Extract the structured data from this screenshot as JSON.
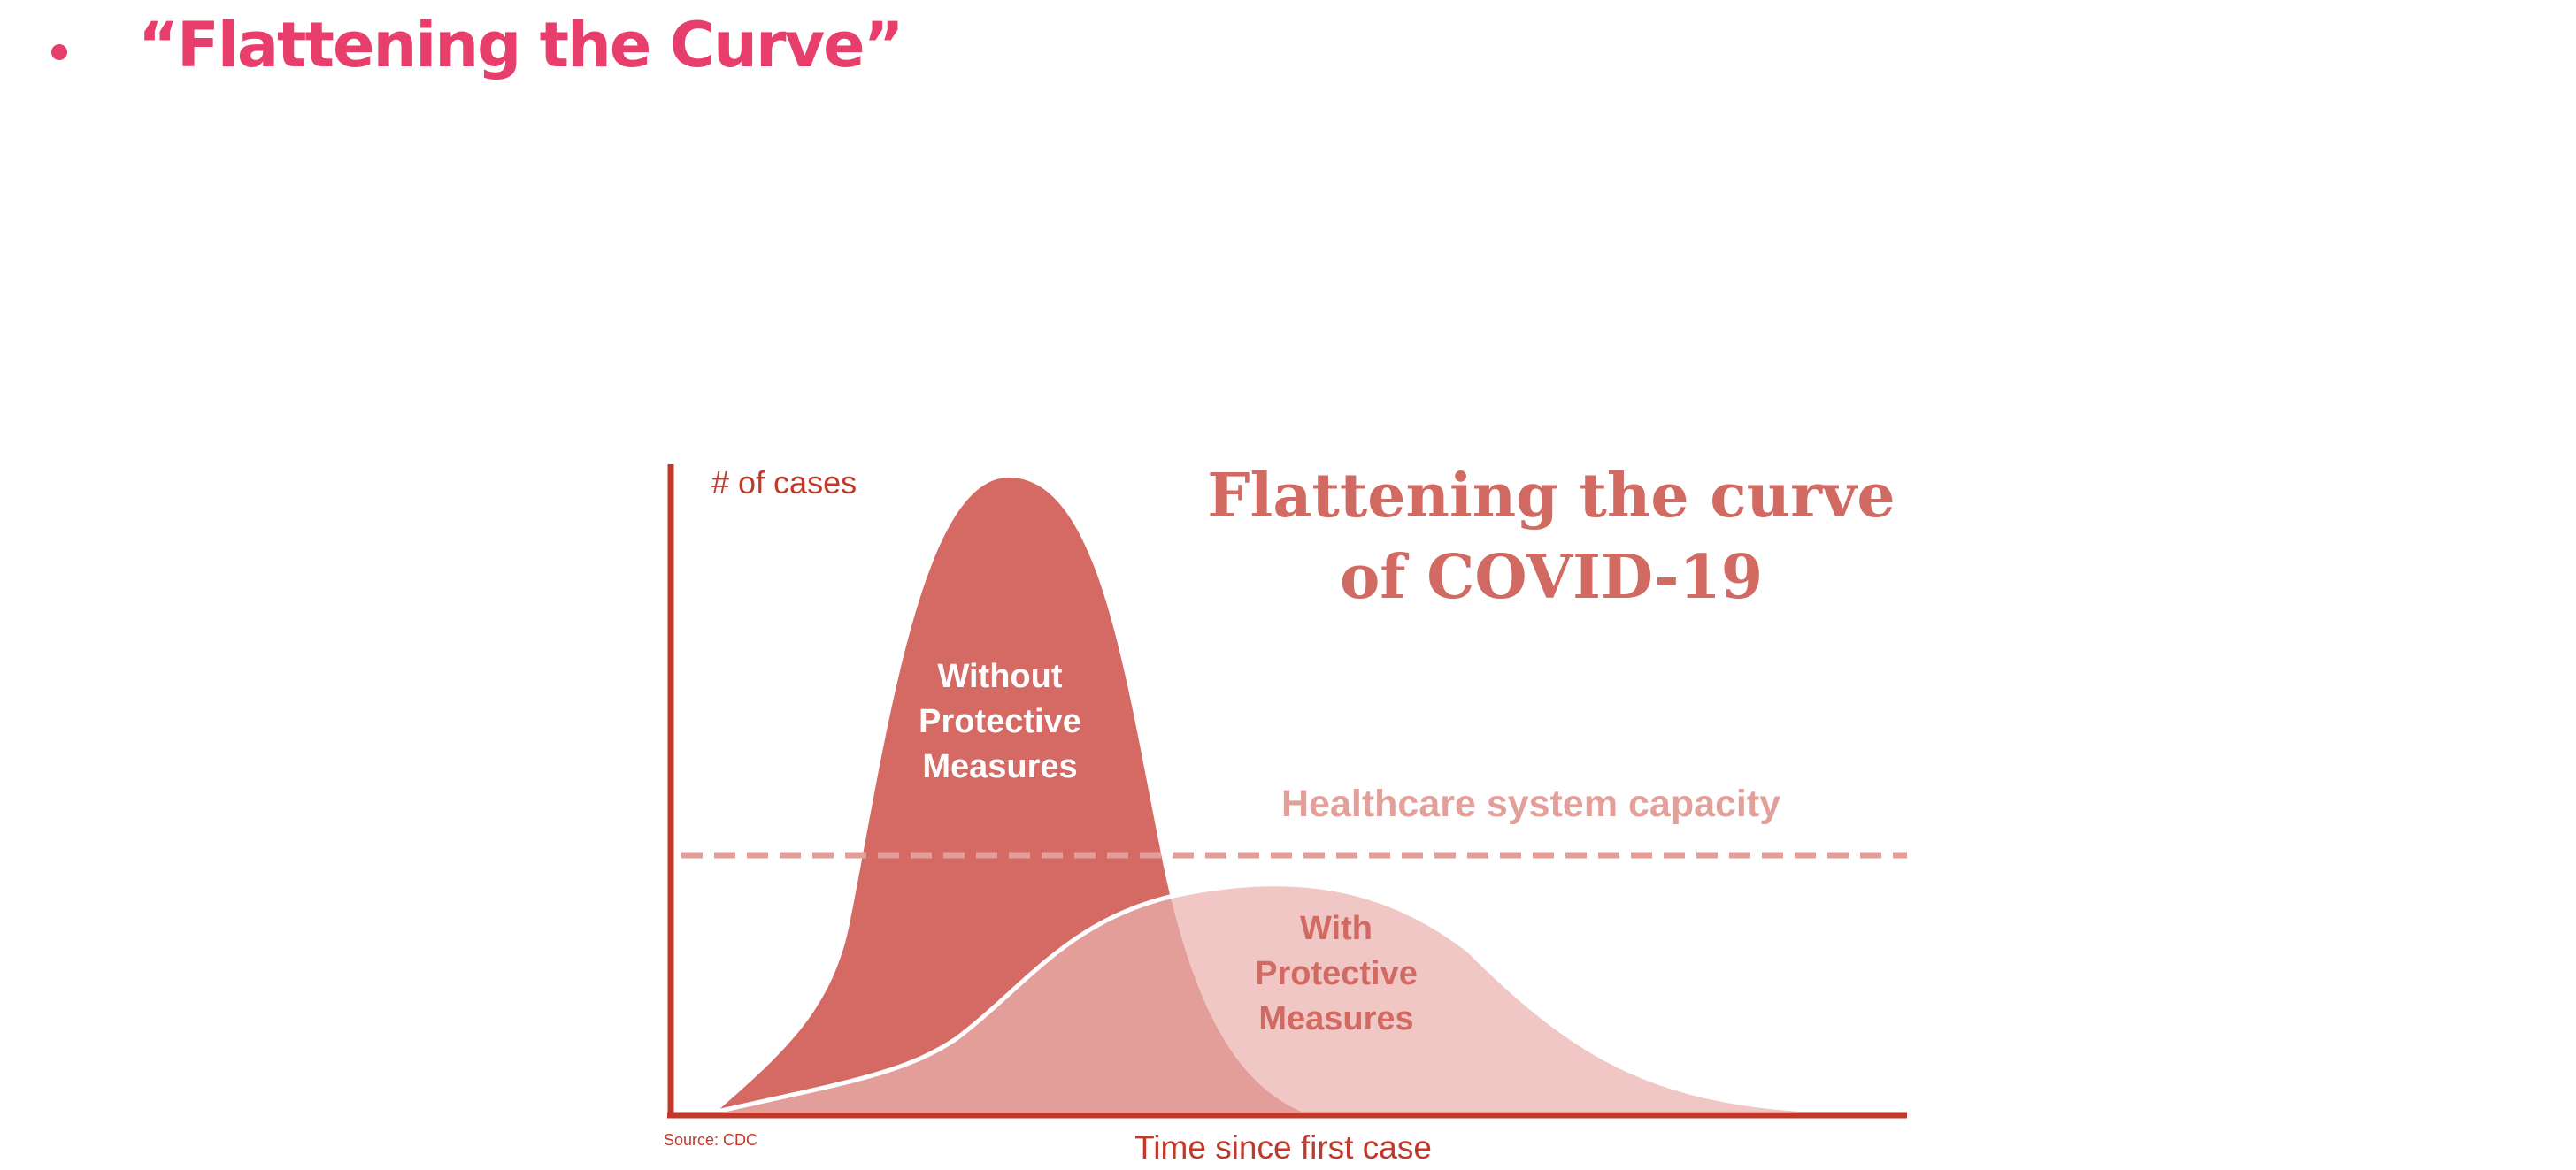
{
  "slide": {
    "bullet_title": "“Flattening the Curve”"
  },
  "figure": {
    "title_line1": "Flattening the curve",
    "title_line2": "of COVID-19",
    "y_axis_label": "# of cases",
    "x_axis_label": "Time since first case",
    "capacity_label": "Healthcare system capacity",
    "without_label": [
      "Without",
      "Protective",
      "Measures"
    ],
    "with_label": [
      "With",
      "Protective",
      "Measures"
    ],
    "source": "Source: CDC"
  },
  "colors": {
    "heading": "#e83e6b",
    "axis": "#c0392b",
    "without_curve": "#d46a63",
    "with_curve": "#f0c7c4",
    "overlap": "#e39e9a",
    "capacity_line": "#e39e9a",
    "title": "#d06a62"
  }
}
